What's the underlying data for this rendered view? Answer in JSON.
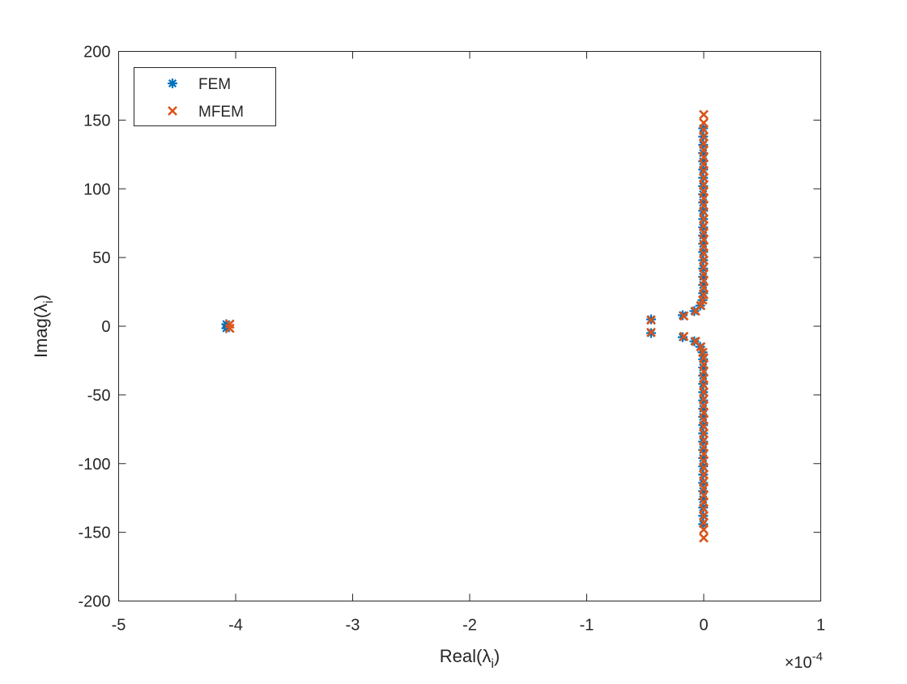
{
  "chart_data": {
    "type": "scatter",
    "xlabel": "Real(λ_i)",
    "ylabel": "Imag(λ_i)",
    "x_exponent": "×10^-4",
    "xlim": [
      -5,
      1
    ],
    "ylim": [
      -200,
      200
    ],
    "x_ticks": [
      "-5",
      "-4",
      "-3",
      "-2",
      "-1",
      "0",
      "1"
    ],
    "y_ticks": [
      "200",
      "150",
      "100",
      "50",
      "0",
      "-50",
      "-100",
      "-150",
      "-200"
    ],
    "grid": false,
    "legend_position": "top-left",
    "series": [
      {
        "name": "FEM",
        "marker": "asterisk",
        "color": "#0072BD",
        "points": [
          [
            -4.08,
            1.5
          ],
          [
            -4.08,
            -1.5
          ],
          [
            -0.45,
            5
          ],
          [
            -0.45,
            -5
          ],
          [
            -0.18,
            8
          ],
          [
            -0.18,
            -8
          ],
          [
            -0.08,
            11
          ],
          [
            -0.08,
            -11
          ],
          [
            -0.03,
            15
          ],
          [
            -0.03,
            -15
          ],
          [
            -0.01,
            19
          ],
          [
            -0.01,
            -19
          ],
          [
            -0.005,
            24
          ],
          [
            -0.005,
            -24
          ],
          [
            -0.005,
            30
          ],
          [
            -0.005,
            -30
          ],
          [
            -0.005,
            36
          ],
          [
            -0.005,
            -36
          ],
          [
            -0.005,
            42
          ],
          [
            -0.005,
            -42
          ],
          [
            -0.005,
            48
          ],
          [
            -0.005,
            -48
          ],
          [
            -0.005,
            54
          ],
          [
            -0.005,
            -54
          ],
          [
            -0.005,
            60
          ],
          [
            -0.005,
            -60
          ],
          [
            -0.005,
            66
          ],
          [
            -0.005,
            -66
          ],
          [
            -0.005,
            72
          ],
          [
            -0.005,
            -72
          ],
          [
            -0.005,
            78
          ],
          [
            -0.005,
            -78
          ],
          [
            -0.005,
            84
          ],
          [
            -0.005,
            -84
          ],
          [
            -0.005,
            90
          ],
          [
            -0.005,
            -90
          ],
          [
            -0.005,
            96
          ],
          [
            -0.005,
            -96
          ],
          [
            -0.005,
            102
          ],
          [
            -0.005,
            -102
          ],
          [
            -0.005,
            108
          ],
          [
            -0.005,
            -108
          ],
          [
            -0.005,
            114
          ],
          [
            -0.005,
            -114
          ],
          [
            -0.005,
            120
          ],
          [
            -0.005,
            -120
          ],
          [
            -0.005,
            126
          ],
          [
            -0.005,
            -126
          ],
          [
            -0.005,
            132
          ],
          [
            -0.005,
            -132
          ],
          [
            -0.005,
            138
          ],
          [
            -0.005,
            -138
          ],
          [
            -0.005,
            144
          ],
          [
            -0.005,
            -144
          ]
        ]
      },
      {
        "name": "MFEM",
        "marker": "cross",
        "color": "#D95319",
        "points": [
          [
            -4.05,
            1.5
          ],
          [
            -4.05,
            -1.5
          ],
          [
            -0.45,
            4.5
          ],
          [
            -0.45,
            -4.5
          ],
          [
            -0.17,
            7.5
          ],
          [
            -0.17,
            -7.5
          ],
          [
            -0.07,
            11
          ],
          [
            -0.07,
            -11
          ],
          [
            -0.025,
            15
          ],
          [
            -0.025,
            -15
          ],
          [
            -0.008,
            19
          ],
          [
            -0.008,
            -19
          ],
          [
            0.0,
            23
          ],
          [
            0.0,
            -23
          ],
          [
            0.0,
            28
          ],
          [
            0.0,
            -28
          ],
          [
            0.0,
            33
          ],
          [
            0.0,
            -33
          ],
          [
            0.0,
            38
          ],
          [
            0.0,
            -38
          ],
          [
            0.0,
            43
          ],
          [
            0.0,
            -43
          ],
          [
            0.0,
            48
          ],
          [
            0.0,
            -48
          ],
          [
            0.0,
            53
          ],
          [
            0.0,
            -53
          ],
          [
            0.0,
            58
          ],
          [
            0.0,
            -58
          ],
          [
            0.0,
            63
          ],
          [
            0.0,
            -63
          ],
          [
            0.0,
            68
          ],
          [
            0.0,
            -68
          ],
          [
            0.0,
            73
          ],
          [
            0.0,
            -73
          ],
          [
            0.0,
            78
          ],
          [
            0.0,
            -78
          ],
          [
            0.0,
            83
          ],
          [
            0.0,
            -83
          ],
          [
            0.0,
            88
          ],
          [
            0.0,
            -88
          ],
          [
            0.0,
            93
          ],
          [
            0.0,
            -93
          ],
          [
            0.0,
            98
          ],
          [
            0.0,
            -98
          ],
          [
            0.0,
            103
          ],
          [
            0.0,
            -103
          ],
          [
            0.0,
            108
          ],
          [
            0.0,
            -108
          ],
          [
            0.0,
            113
          ],
          [
            0.0,
            -113
          ],
          [
            0.0,
            118
          ],
          [
            0.0,
            -118
          ],
          [
            0.0,
            123
          ],
          [
            0.0,
            -123
          ],
          [
            0.0,
            128
          ],
          [
            0.0,
            -128
          ],
          [
            0.0,
            133
          ],
          [
            0.0,
            -133
          ],
          [
            0.0,
            138
          ],
          [
            0.0,
            -138
          ],
          [
            0.0,
            143
          ],
          [
            0.0,
            -143
          ],
          [
            0.0,
            148
          ],
          [
            0.0,
            -148
          ],
          [
            0.0,
            154
          ],
          [
            0.0,
            -154
          ]
        ]
      }
    ]
  }
}
